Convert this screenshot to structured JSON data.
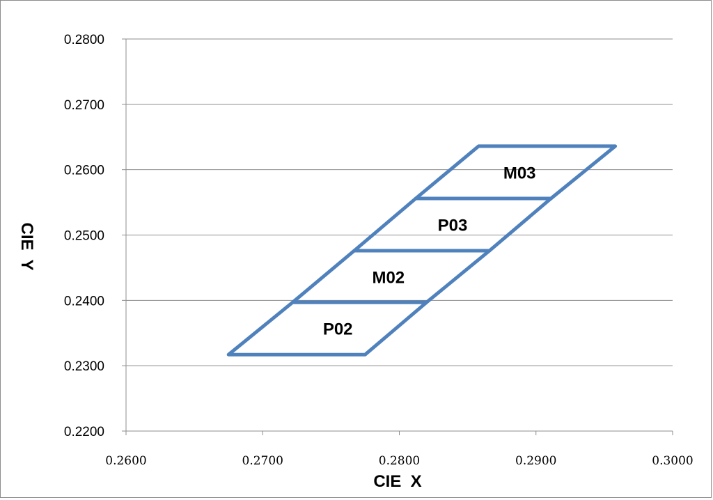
{
  "chart_data": {
    "type": "line",
    "title": "",
    "xlabel": "CIE  X",
    "ylabel": "CIE  Y",
    "xlim": [
      0.26,
      0.3
    ],
    "ylim": [
      0.22,
      0.28
    ],
    "x_ticks": [
      0.26,
      0.27,
      0.28,
      0.29,
      0.3
    ],
    "x_tick_labels": [
      "0.2600",
      "0.2700",
      "0.2800",
      "0.2900",
      "0.3000"
    ],
    "y_ticks": [
      0.22,
      0.23,
      0.24,
      0.25,
      0.26,
      0.27,
      0.28
    ],
    "y_tick_labels": [
      "0.2200",
      "0.2300",
      "0.2400",
      "0.2500",
      "0.2600",
      "0.2700",
      "0.2800"
    ],
    "grid": "horizontal",
    "legend": "none",
    "line_color": "#4f81bd",
    "series": [
      {
        "region": "P02",
        "points": [
          [
            0.2675,
            0.2317
          ],
          [
            0.2775,
            0.2317
          ],
          [
            0.282,
            0.2397
          ],
          [
            0.2722,
            0.2397
          ],
          [
            0.2675,
            0.2317
          ]
        ]
      },
      {
        "region": "M02",
        "points": [
          [
            0.2722,
            0.2397
          ],
          [
            0.282,
            0.2397
          ],
          [
            0.2866,
            0.2476
          ],
          [
            0.2767,
            0.2476
          ],
          [
            0.2722,
            0.2397
          ]
        ]
      },
      {
        "region": "P03",
        "points": [
          [
            0.2767,
            0.2476
          ],
          [
            0.2866,
            0.2476
          ],
          [
            0.2911,
            0.2556
          ],
          [
            0.2812,
            0.2556
          ],
          [
            0.2767,
            0.2476
          ]
        ]
      },
      {
        "region": "M03",
        "points": [
          [
            0.2812,
            0.2556
          ],
          [
            0.2911,
            0.2556
          ],
          [
            0.2958,
            0.2636
          ],
          [
            0.2858,
            0.2636
          ],
          [
            0.2812,
            0.2556
          ]
        ]
      }
    ],
    "annotations": [
      {
        "text": "P02",
        "x": 0.2755,
        "y": 0.2357
      },
      {
        "text": "M02",
        "x": 0.2792,
        "y": 0.2436
      },
      {
        "text": "P03",
        "x": 0.2839,
        "y": 0.2516
      },
      {
        "text": "M03",
        "x": 0.2888,
        "y": 0.2596
      }
    ]
  }
}
